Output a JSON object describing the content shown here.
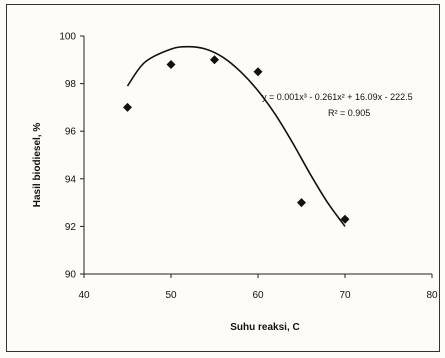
{
  "chart_data": {
    "type": "scatter",
    "title": "",
    "xlabel": "Suhu reaksi, C",
    "ylabel": "Hasil biodiesel, %",
    "xlim": [
      40,
      80
    ],
    "ylim": [
      90,
      100
    ],
    "x_ticks": [
      "40",
      "50",
      "60",
      "70",
      "80"
    ],
    "y_ticks": [
      "90",
      "92",
      "94",
      "96",
      "98",
      "100"
    ],
    "grid": false,
    "points": [
      {
        "x": 45,
        "y": 97.0
      },
      {
        "x": 50,
        "y": 98.8
      },
      {
        "x": 55,
        "y": 99.0
      },
      {
        "x": 60,
        "y": 98.5
      },
      {
        "x": 65,
        "y": 93.0
      },
      {
        "x": 70,
        "y": 92.3
      }
    ],
    "trendline": {
      "type": "polynomial-3",
      "equation": "y = 0.001x³ - 0.261x² + 16.09x - 222.5",
      "r2": "R² = 0.905",
      "curve": [
        {
          "x": 45,
          "y": 97.9
        },
        {
          "x": 47,
          "y": 98.9
        },
        {
          "x": 50,
          "y": 99.45
        },
        {
          "x": 52,
          "y": 99.55
        },
        {
          "x": 54,
          "y": 99.45
        },
        {
          "x": 56,
          "y": 99.1
        },
        {
          "x": 58,
          "y": 98.5
        },
        {
          "x": 60,
          "y": 97.7
        },
        {
          "x": 62,
          "y": 96.7
        },
        {
          "x": 64,
          "y": 95.5
        },
        {
          "x": 66,
          "y": 94.2
        },
        {
          "x": 68,
          "y": 93.0
        },
        {
          "x": 70,
          "y": 92.0
        }
      ]
    }
  }
}
